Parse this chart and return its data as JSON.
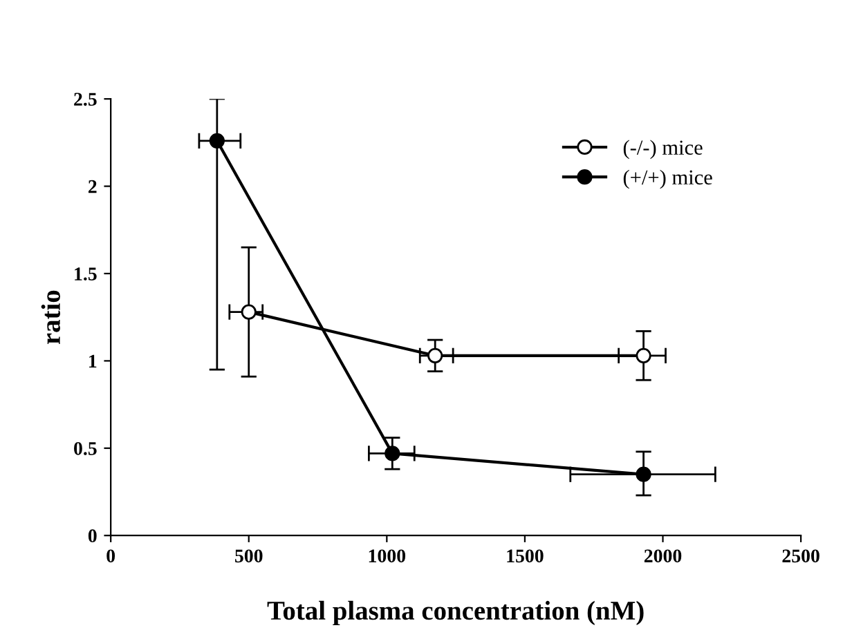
{
  "chart_data": {
    "type": "line",
    "xlabel": "Total plasma concentration (nM)",
    "ylabel": "ratio",
    "xlim": [
      0,
      2500
    ],
    "xticks": [
      0,
      500,
      1000,
      1500,
      2000,
      2500
    ],
    "ylim": [
      0,
      2.5
    ],
    "yticks": [
      0,
      0.5,
      1,
      1.5,
      2,
      2.5
    ],
    "marker": "circle",
    "line_style": "solid",
    "legend": "top right",
    "grid": false,
    "series": [
      {
        "name": "(-/-) mice",
        "color": "#ffffff",
        "x": [
          500,
          1175,
          1930
        ],
        "values": [
          1.28,
          1.03,
          1.03
        ],
        "errors": [
          [
            0.91,
            1.65
          ],
          [
            0.94,
            1.12
          ],
          [
            0.89,
            1.17
          ]
        ],
        "xerrors": [
          [
            430,
            550
          ],
          [
            1120,
            1240
          ],
          [
            1840,
            2010
          ]
        ]
      },
      {
        "name": "(+/+) mice",
        "color": "#000000",
        "x": [
          385,
          1020,
          1930
        ],
        "values": [
          2.26,
          0.47,
          0.35
        ],
        "errors": [
          [
            0.95,
            2.5
          ],
          [
            0.38,
            0.56
          ],
          [
            0.23,
            0.48
          ]
        ],
        "xerrors": [
          [
            320,
            470
          ],
          [
            935,
            1100
          ],
          [
            1665,
            2190
          ]
        ]
      }
    ]
  }
}
